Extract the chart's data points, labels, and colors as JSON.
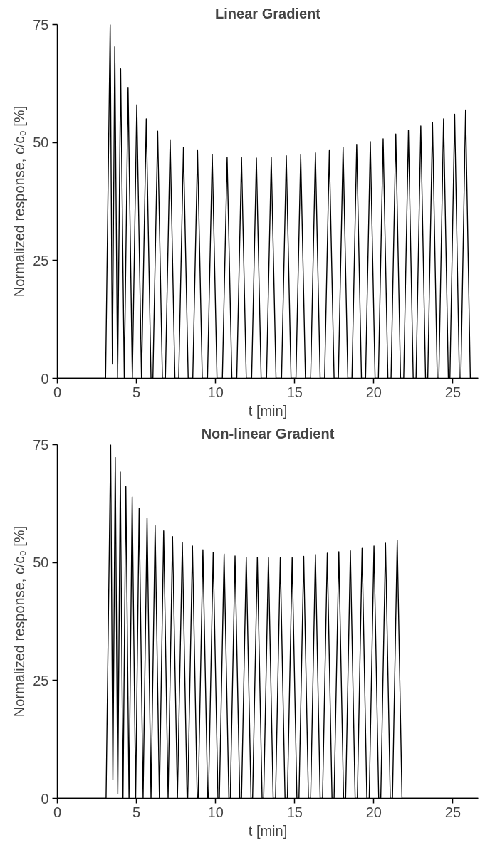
{
  "chart_data": [
    {
      "type": "line",
      "title": "Linear Gradient",
      "xlabel": "t [min]",
      "ylabel": "Normalized response, c/c₀ [%]",
      "xlim": [
        0,
        26.6
      ],
      "ylim": [
        0,
        75
      ],
      "xticks": [
        0,
        5,
        10,
        15,
        20,
        25
      ],
      "yticks": [
        0,
        25,
        50,
        75
      ],
      "line_style": "solid",
      "series": [
        {
          "color": "#000000",
          "x": [
            0,
            3.05,
            3.34,
            3.48,
            3.63,
            3.81,
            4.0,
            4.23,
            4.47,
            4.74,
            5.02,
            5.32,
            5.62,
            5.92,
            6.04,
            6.34,
            6.64,
            6.83,
            7.13,
            7.43,
            7.67,
            7.97,
            8.27,
            8.56,
            8.86,
            9.16,
            9.49,
            9.79,
            10.09,
            10.43,
            10.73,
            11.03,
            11.34,
            11.64,
            11.94,
            12.28,
            12.58,
            12.88,
            13.22,
            13.52,
            13.82,
            14.17,
            14.47,
            14.77,
            15.08,
            15.38,
            15.68,
            16.01,
            16.31,
            16.61,
            16.89,
            17.19,
            17.49,
            17.76,
            18.06,
            18.36,
            18.62,
            18.92,
            19.22,
            19.48,
            19.78,
            20.08,
            20.29,
            20.59,
            20.89,
            21.09,
            21.39,
            21.69,
            21.89,
            22.19,
            22.49,
            22.67,
            22.97,
            23.27,
            23.41,
            23.71,
            24.01,
            24.11,
            24.41,
            24.71,
            24.81,
            25.11,
            25.41,
            25.5,
            25.8,
            26.1,
            26.6
          ],
          "values": [
            0,
            0,
            75,
            3,
            70.3,
            0,
            65.6,
            0,
            61.7,
            0,
            58.0,
            0,
            55.0,
            0,
            0,
            52.4,
            0,
            0,
            50.6,
            0,
            0,
            49.0,
            0,
            0,
            48.3,
            0,
            0,
            47.5,
            0,
            0,
            46.8,
            0,
            0,
            46.8,
            0,
            0,
            46.7,
            0,
            0,
            46.8,
            0,
            0,
            47.2,
            0,
            0,
            47.4,
            0,
            0,
            47.8,
            0,
            0,
            48.3,
            0,
            0,
            49.0,
            0,
            0,
            49.6,
            0,
            0,
            50.2,
            0,
            0,
            50.8,
            0,
            0,
            51.8,
            0,
            0,
            52.6,
            0,
            0,
            53.5,
            0,
            0,
            54.3,
            0,
            0,
            55.0,
            0,
            0,
            56.0,
            0,
            0,
            56.9,
            0,
            0
          ]
        }
      ]
    },
    {
      "type": "line",
      "title": "Non-linear Gradient",
      "xlabel": "t [min]",
      "ylabel": "Normalized response, c/c₀ [%]",
      "xlim": [
        0,
        26.6
      ],
      "ylim": [
        0,
        75
      ],
      "xticks": [
        0,
        5,
        10,
        15,
        20,
        25
      ],
      "yticks": [
        0,
        25,
        50,
        75
      ],
      "line_style": "solid",
      "series": [
        {
          "color": "#000000",
          "x": [
            0,
            3.08,
            3.37,
            3.51,
            3.66,
            3.82,
            3.98,
            4.15,
            4.33,
            4.53,
            4.73,
            4.95,
            5.17,
            5.42,
            5.67,
            5.92,
            6.18,
            6.45,
            6.72,
            7.0,
            7.28,
            7.59,
            7.9,
            8.2,
            8.24,
            8.54,
            8.84,
            8.9,
            9.2,
            9.5,
            9.55,
            9.85,
            10.15,
            10.24,
            10.54,
            10.84,
            10.93,
            11.23,
            11.53,
            11.64,
            11.94,
            12.24,
            12.34,
            12.64,
            12.94,
            13.04,
            13.34,
            13.64,
            13.79,
            14.09,
            14.39,
            14.54,
            14.84,
            15.14,
            15.27,
            15.57,
            15.87,
            16.01,
            16.31,
            16.61,
            16.76,
            17.06,
            17.36,
            17.49,
            17.79,
            18.09,
            18.22,
            18.52,
            18.82,
            18.96,
            19.26,
            19.56,
            19.71,
            20.01,
            20.31,
            20.44,
            20.74,
            21.04,
            21.18,
            21.48,
            21.78,
            26.6
          ],
          "values": [
            0,
            0,
            75,
            4,
            72.3,
            1,
            69.2,
            0,
            66.1,
            0,
            63.9,
            0,
            61.5,
            0,
            59.5,
            0,
            57.8,
            0,
            56.7,
            0,
            55.5,
            0,
            54.2,
            0,
            0,
            53.5,
            0,
            0,
            52.7,
            0,
            0,
            52.2,
            0,
            0,
            51.8,
            0,
            0,
            51.4,
            0,
            0,
            51.1,
            0,
            0,
            51.1,
            0,
            0,
            51.0,
            0,
            0,
            51.0,
            0,
            0,
            51.0,
            0,
            0,
            51.3,
            0,
            0,
            51.7,
            0,
            0,
            52.0,
            0,
            0,
            52.3,
            0,
            0,
            52.5,
            0,
            0,
            53.0,
            0,
            0,
            53.5,
            0,
            0,
            54.1,
            0,
            0,
            54.7,
            0,
            0
          ]
        }
      ]
    }
  ]
}
